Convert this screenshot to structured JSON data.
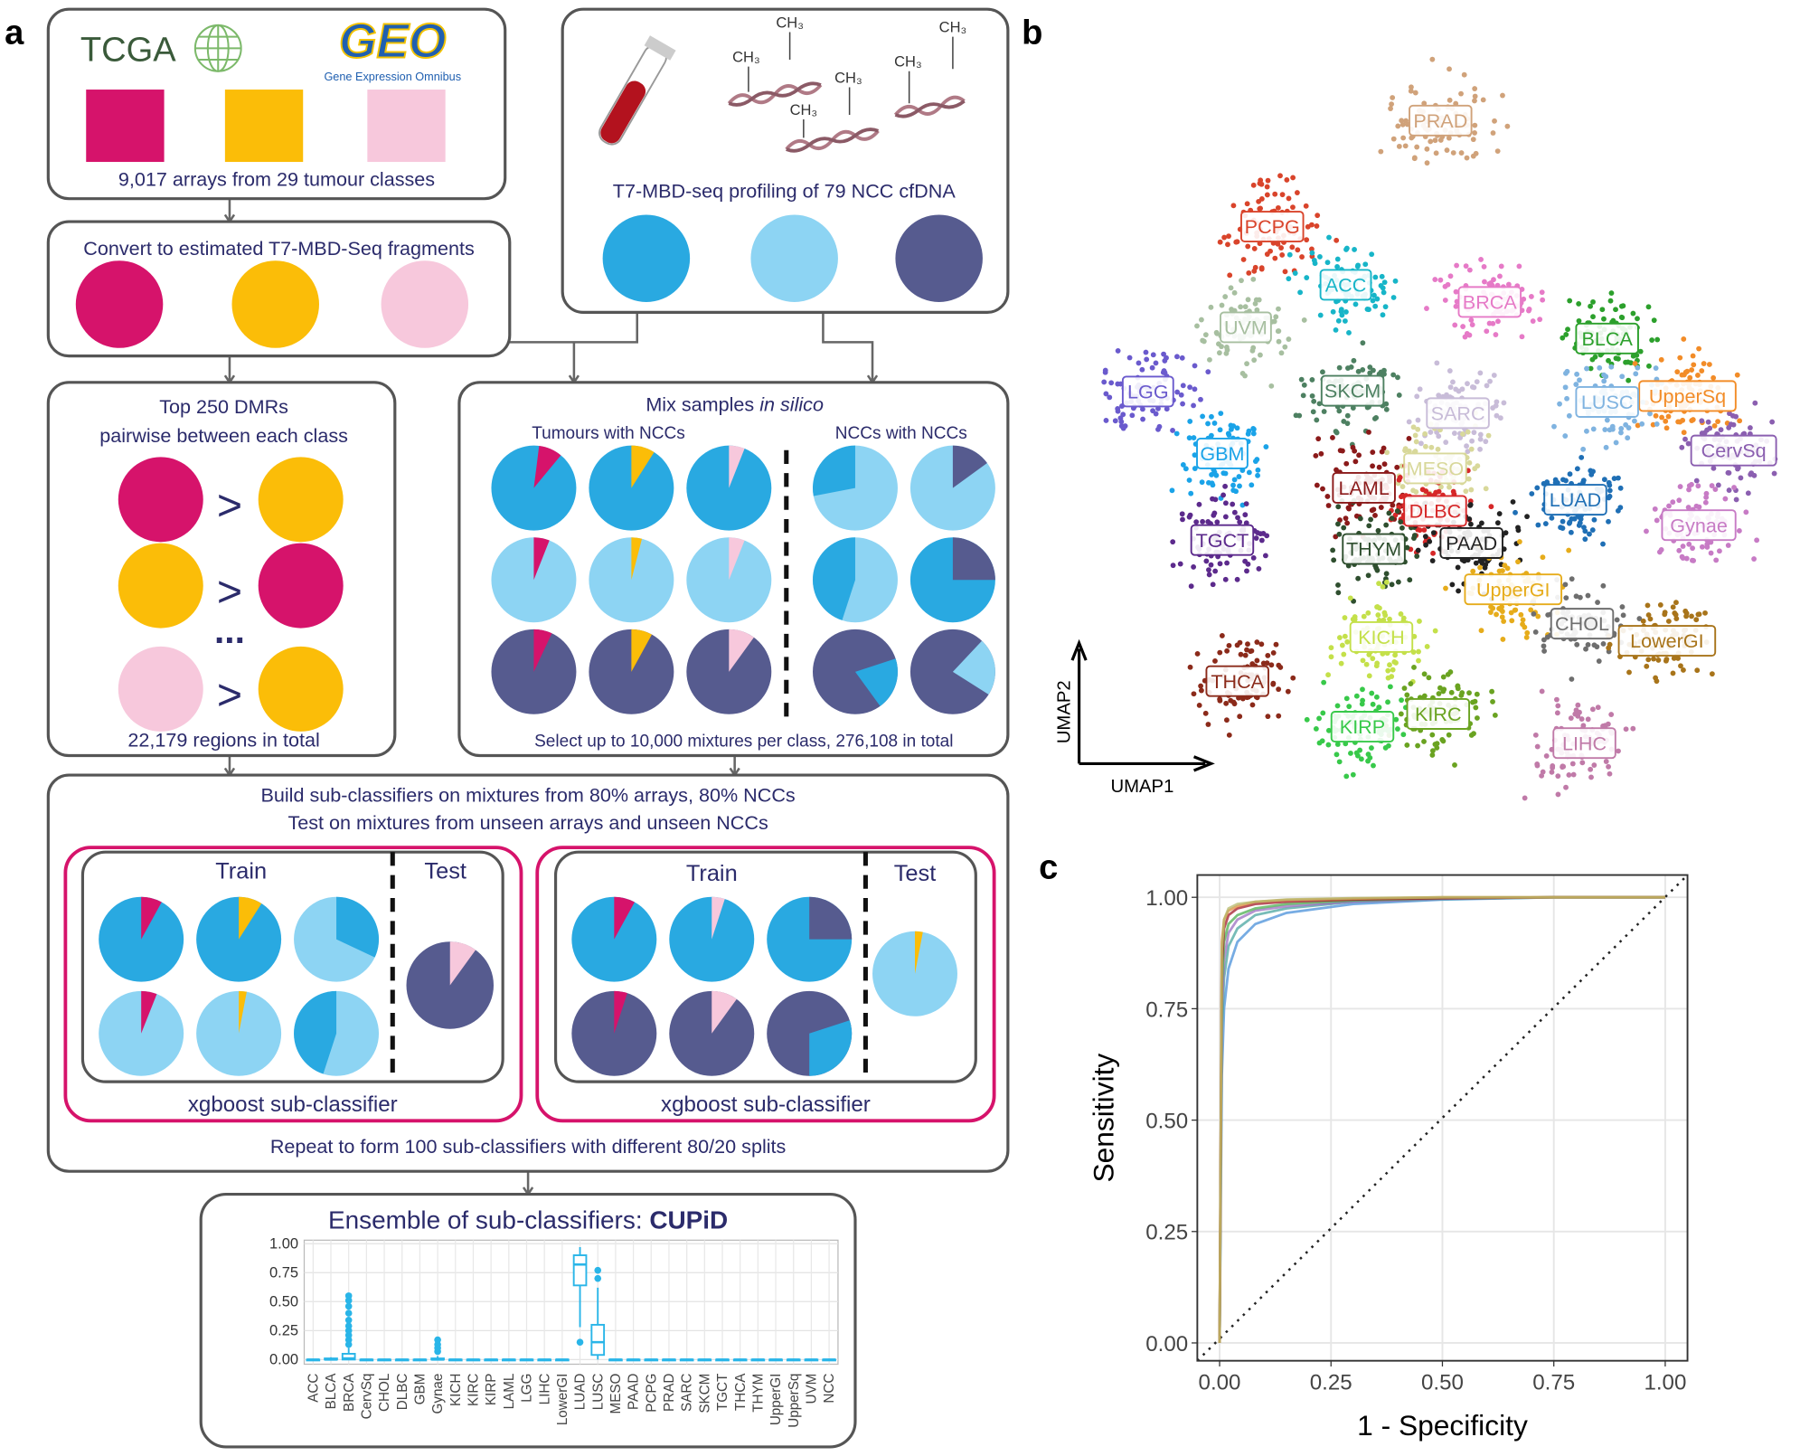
{
  "panel_labels": {
    "a": "a",
    "b": "b",
    "c": "c"
  },
  "panel_a": {
    "sources": {
      "tcga": "TCGA",
      "geo": "GEO",
      "geo_full": "Gene Expression Omnibus"
    },
    "arrays": "9,017 arrays from 29 tumour classes",
    "convert": "Convert to estimated T7-MBD-Seq fragments",
    "methyl": "CH₃",
    "profiling": "T7-MBD-seq profiling of 79 NCC cfDNA",
    "dmr_title": "Top 250 DMRs",
    "dmr_subtitle": "pairwise between each class",
    "greater": ">",
    "ellipsis": "...",
    "regions": "22,179 regions in total",
    "mix_title": "Mix samples ",
    "mix_title_italic": "in silico",
    "tumours_with_nccs": "Tumours with NCCs",
    "nccs_with_nccs": "NCCs with NCCs",
    "select": "Select up to 10,000 mixtures per class, 276,108 in total",
    "build": "Build sub-classifiers on mixtures from 80% arrays, 80% NCCs",
    "test_on": "Test on mixtures from unseen arrays and unseen NCCs",
    "train": "Train",
    "test": "Test",
    "sub_classifier": "xgboost sub-classifier",
    "repeat": "Repeat to form 100 sub-classifiers with different 80/20 splits",
    "ensemble": "Ensemble of sub-classifiers: ",
    "ensemble_name": "CUPiD"
  },
  "chart_data": [
    {
      "type": "box",
      "color": "#29b5e8",
      "grid": true,
      "categories": [
        "ACC",
        "BLCA",
        "BRCA",
        "CervSq",
        "CHOL",
        "DLBC",
        "GBM",
        "Gynae",
        "KICH",
        "KIRC",
        "KIRP",
        "LAML",
        "LGG",
        "LIHC",
        "LowerGI",
        "LUAD",
        "LUSC",
        "MESO",
        "PAAD",
        "PCPG",
        "PRAD",
        "SARC",
        "SKCM",
        "TGCT",
        "THCA",
        "THYM",
        "UpperGI",
        "UpperSq",
        "UVM",
        "NCC"
      ],
      "boxes": [
        {
          "low": 0,
          "q1": 0,
          "median": 0,
          "q3": 0,
          "high": 0,
          "outliers": []
        },
        {
          "low": 0,
          "q1": 0,
          "median": 0,
          "q3": 0.01,
          "high": 0.02,
          "outliers": []
        },
        {
          "low": 0,
          "q1": 0,
          "median": 0.01,
          "q3": 0.05,
          "high": 0.1,
          "outliers": [
            0.13,
            0.17,
            0.21,
            0.25,
            0.29,
            0.34,
            0.4,
            0.46,
            0.51,
            0.55
          ]
        },
        {
          "low": 0,
          "q1": 0,
          "median": 0,
          "q3": 0,
          "high": 0,
          "outliers": []
        },
        {
          "low": 0,
          "q1": 0,
          "median": 0,
          "q3": 0,
          "high": 0,
          "outliers": []
        },
        {
          "low": 0,
          "q1": 0,
          "median": 0,
          "q3": 0,
          "high": 0,
          "outliers": []
        },
        {
          "low": 0,
          "q1": 0,
          "median": 0,
          "q3": 0,
          "high": 0,
          "outliers": []
        },
        {
          "low": 0,
          "q1": 0,
          "median": 0,
          "q3": 0.01,
          "high": 0.03,
          "outliers": [
            0.07,
            0.1,
            0.13,
            0.17
          ]
        },
        {
          "low": 0,
          "q1": 0,
          "median": 0,
          "q3": 0,
          "high": 0,
          "outliers": []
        },
        {
          "low": 0,
          "q1": 0,
          "median": 0,
          "q3": 0,
          "high": 0,
          "outliers": []
        },
        {
          "low": 0,
          "q1": 0,
          "median": 0,
          "q3": 0,
          "high": 0,
          "outliers": []
        },
        {
          "low": 0,
          "q1": 0,
          "median": 0,
          "q3": 0,
          "high": 0,
          "outliers": []
        },
        {
          "low": 0,
          "q1": 0,
          "median": 0,
          "q3": 0,
          "high": 0,
          "outliers": []
        },
        {
          "low": 0,
          "q1": 0,
          "median": 0,
          "q3": 0,
          "high": 0,
          "outliers": []
        },
        {
          "low": 0,
          "q1": 0,
          "median": 0,
          "q3": 0,
          "high": 0,
          "outliers": []
        },
        {
          "low": 0.28,
          "q1": 0.64,
          "median": 0.82,
          "q3": 0.9,
          "high": 0.97,
          "outliers": [
            0.15
          ]
        },
        {
          "low": 0,
          "q1": 0.04,
          "median": 0.15,
          "q3": 0.3,
          "high": 0.62,
          "outliers": [
            0.7,
            0.77
          ]
        },
        {
          "low": 0,
          "q1": 0,
          "median": 0,
          "q3": 0,
          "high": 0,
          "outliers": []
        },
        {
          "low": 0,
          "q1": 0,
          "median": 0,
          "q3": 0,
          "high": 0,
          "outliers": []
        },
        {
          "low": 0,
          "q1": 0,
          "median": 0,
          "q3": 0,
          "high": 0,
          "outliers": []
        },
        {
          "low": 0,
          "q1": 0,
          "median": 0,
          "q3": 0,
          "high": 0,
          "outliers": []
        },
        {
          "low": 0,
          "q1": 0,
          "median": 0,
          "q3": 0,
          "high": 0,
          "outliers": []
        },
        {
          "low": 0,
          "q1": 0,
          "median": 0,
          "q3": 0,
          "high": 0,
          "outliers": []
        },
        {
          "low": 0,
          "q1": 0,
          "median": 0,
          "q3": 0,
          "high": 0,
          "outliers": []
        },
        {
          "low": 0,
          "q1": 0,
          "median": 0,
          "q3": 0,
          "high": 0,
          "outliers": []
        },
        {
          "low": 0,
          "q1": 0,
          "median": 0,
          "q3": 0,
          "high": 0,
          "outliers": []
        },
        {
          "low": 0,
          "q1": 0,
          "median": 0,
          "q3": 0,
          "high": 0,
          "outliers": []
        },
        {
          "low": 0,
          "q1": 0,
          "median": 0,
          "q3": 0,
          "high": 0,
          "outliers": []
        },
        {
          "low": 0,
          "q1": 0,
          "median": 0,
          "q3": 0,
          "high": 0,
          "outliers": []
        },
        {
          "low": 0,
          "q1": 0,
          "median": 0,
          "q3": 0,
          "high": 0,
          "outliers": []
        }
      ],
      "ylim": [
        -0.04,
        1.03
      ],
      "yticks": [
        {
          "value": 0,
          "label": "0.00"
        },
        {
          "value": 0.25,
          "label": "0.25"
        },
        {
          "value": 0.5,
          "label": "0.50"
        },
        {
          "value": 0.75,
          "label": "0.75"
        },
        {
          "value": 1,
          "label": "1.00"
        }
      ]
    },
    {
      "type": "scatter",
      "x_label": "UMAP1",
      "y_label": "UMAP2",
      "xlim": [
        0,
        100
      ],
      "ylim": [
        0,
        100
      ],
      "clusters": [
        {
          "name": "PRAD",
          "color": "#d0a27a",
          "x": 53,
          "y": 90
        },
        {
          "name": "PCPG",
          "color": "#d9442b",
          "x": 30.8,
          "y": 75.8
        },
        {
          "name": "ACC",
          "color": "#17b5c8",
          "x": 40.5,
          "y": 68
        },
        {
          "name": "UVM",
          "color": "#a7bfa0",
          "x": 27.3,
          "y": 62.3
        },
        {
          "name": "BRCA",
          "color": "#e67ac7",
          "x": 59.5,
          "y": 65.7
        },
        {
          "name": "BLCA",
          "color": "#2ca02c",
          "x": 75,
          "y": 60.8
        },
        {
          "name": "LGG",
          "color": "#6a5acd",
          "x": 14.4,
          "y": 53.7
        },
        {
          "name": "SKCM",
          "color": "#4d8061",
          "x": 41.4,
          "y": 53.8
        },
        {
          "name": "SARC",
          "color": "#c8bcd8",
          "x": 55.3,
          "y": 50.8
        },
        {
          "name": "UpperSq",
          "color": "#f28c28",
          "x": 85.6,
          "y": 53.1
        },
        {
          "name": "LUSC",
          "color": "#7fb3e0",
          "x": 75,
          "y": 52.3
        },
        {
          "name": "CervSq",
          "color": "#8b5fb0",
          "x": 91.7,
          "y": 45.8
        },
        {
          "name": "GBM",
          "color": "#1aa3e8",
          "x": 24.2,
          "y": 45.4
        },
        {
          "name": "MESO",
          "color": "#d8d89a",
          "x": 52.3,
          "y": 43.4
        },
        {
          "name": "LAML",
          "color": "#8b1a1a",
          "x": 42.9,
          "y": 40.8
        },
        {
          "name": "DLBC",
          "color": "#d62728",
          "x": 52.3,
          "y": 37.7
        },
        {
          "name": "LUAD",
          "color": "#1f6fb5",
          "x": 70.8,
          "y": 39.2
        },
        {
          "name": "Gynae",
          "color": "#c77bc5",
          "x": 87.1,
          "y": 35.8
        },
        {
          "name": "TGCT",
          "color": "#5c2a8c",
          "x": 24.2,
          "y": 33.8
        },
        {
          "name": "THYM",
          "color": "#2f4f2f",
          "x": 44.2,
          "y": 32.6
        },
        {
          "name": "PAAD",
          "color": "#222222",
          "x": 57.1,
          "y": 33.4
        },
        {
          "name": "UpperGI",
          "color": "#e6ac1b",
          "x": 62.6,
          "y": 27.2
        },
        {
          "name": "KICH",
          "color": "#c4e04a",
          "x": 45.2,
          "y": 20.8
        },
        {
          "name": "CHOL",
          "color": "#6e6e6e",
          "x": 71.7,
          "y": 22.6
        },
        {
          "name": "LowerGI",
          "color": "#a8741a",
          "x": 82.9,
          "y": 20.3
        },
        {
          "name": "THCA",
          "color": "#8b2a1a",
          "x": 26.2,
          "y": 14.9
        },
        {
          "name": "KIRC",
          "color": "#6aa321",
          "x": 52.7,
          "y": 10.5
        },
        {
          "name": "KIRP",
          "color": "#38c94a",
          "x": 42.7,
          "y": 8.8
        },
        {
          "name": "LIHC",
          "color": "#c07aa8",
          "x": 72,
          "y": 6.6
        }
      ]
    },
    {
      "type": "line",
      "x_label": "1 - Specificity",
      "y_label": "Sensitivity",
      "grid": true,
      "reference_diagonal": true,
      "xlim": [
        -0.05,
        1.05
      ],
      "ylim": [
        -0.04,
        1.05
      ],
      "xticks": [
        {
          "value": 0,
          "label": "0.00"
        },
        {
          "value": 0.25,
          "label": "0.25"
        },
        {
          "value": 0.5,
          "label": "0.50"
        },
        {
          "value": 0.75,
          "label": "0.75"
        },
        {
          "value": 1,
          "label": "1.00"
        }
      ],
      "yticks": [
        {
          "value": 0,
          "label": "0.00"
        },
        {
          "value": 0.25,
          "label": "0.25"
        },
        {
          "value": 0.5,
          "label": "0.50"
        },
        {
          "value": 0.75,
          "label": "0.75"
        },
        {
          "value": 1,
          "label": "1.00"
        }
      ],
      "series": [
        {
          "color": "#4a90d9",
          "x": [
            0,
            0.005,
            0.01,
            0.02,
            0.04,
            0.08,
            0.15,
            0.3,
            0.5,
            0.75,
            1
          ],
          "values": [
            0,
            0.6,
            0.75,
            0.84,
            0.9,
            0.94,
            0.965,
            0.985,
            0.995,
            1,
            1
          ]
        },
        {
          "color": "#4aa5a0",
          "x": [
            0,
            0.005,
            0.01,
            0.02,
            0.04,
            0.08,
            0.15,
            0.3,
            0.5,
            0.75,
            1
          ],
          "values": [
            0,
            0.7,
            0.82,
            0.89,
            0.93,
            0.96,
            0.975,
            0.99,
            0.996,
            1,
            1
          ]
        },
        {
          "color": "#9b6fc0",
          "x": [
            0,
            0.005,
            0.01,
            0.02,
            0.04,
            0.08,
            0.15,
            0.3,
            0.5,
            0.75,
            1
          ],
          "values": [
            0,
            0.75,
            0.86,
            0.92,
            0.95,
            0.97,
            0.98,
            0.99,
            0.997,
            1,
            1
          ]
        },
        {
          "color": "#4caf50",
          "x": [
            0,
            0.005,
            0.01,
            0.02,
            0.04,
            0.08,
            0.15,
            0.3,
            0.5,
            0.75,
            1
          ],
          "values": [
            0,
            0.8,
            0.9,
            0.94,
            0.96,
            0.975,
            0.985,
            0.993,
            0.998,
            1,
            1
          ]
        },
        {
          "color": "#a31a2a",
          "x": [
            0,
            0.005,
            0.01,
            0.02,
            0.04,
            0.08,
            0.15,
            0.3,
            0.5,
            0.75,
            1
          ],
          "values": [
            0,
            0.85,
            0.93,
            0.96,
            0.975,
            0.985,
            0.99,
            0.995,
            0.998,
            1,
            1
          ]
        },
        {
          "color": "#e08a3c",
          "x": [
            0,
            0.005,
            0.01,
            0.02,
            0.04,
            0.08,
            0.15,
            0.3,
            0.5,
            0.75,
            1
          ],
          "values": [
            0,
            0.9,
            0.95,
            0.97,
            0.98,
            0.99,
            0.994,
            0.997,
            1,
            1,
            1
          ]
        },
        {
          "color": "#b5b86a",
          "x": [
            0,
            0.005,
            0.01,
            0.02,
            0.04,
            0.08,
            0.15,
            0.3,
            0.5,
            0.75,
            1
          ],
          "values": [
            0,
            0.88,
            0.95,
            0.975,
            0.985,
            0.99,
            0.995,
            0.998,
            1,
            1,
            1
          ]
        }
      ]
    }
  ]
}
